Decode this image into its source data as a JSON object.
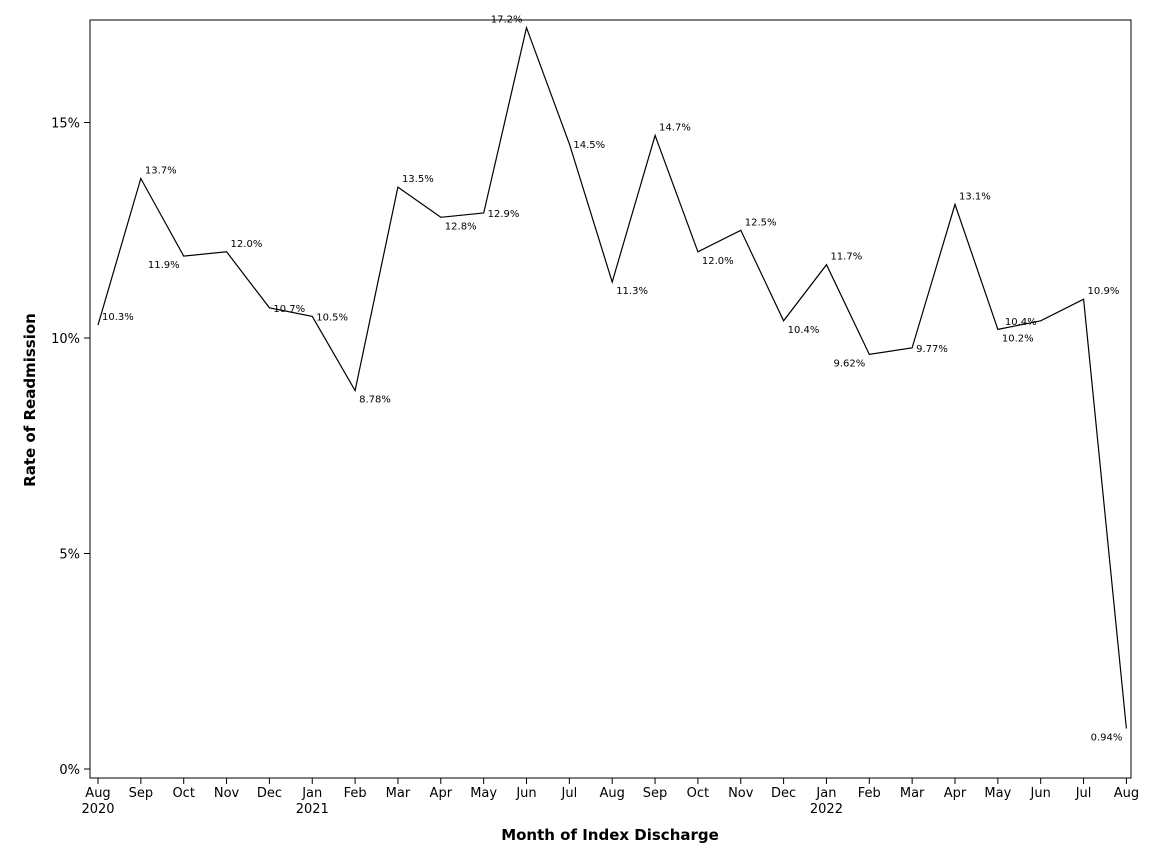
{
  "chart_data": {
    "type": "line",
    "xlabel": "Month of Index Discharge",
    "ylabel": "Rate of Readmission",
    "ylim": [
      0,
      17.4
    ],
    "yticks": [
      {
        "value": 0,
        "label": "0%"
      },
      {
        "value": 5,
        "label": "5%"
      },
      {
        "value": 10,
        "label": "10%"
      },
      {
        "value": 15,
        "label": "15%"
      }
    ],
    "grid": false,
    "x": [
      "Aug 2020",
      "Sep 2020",
      "Oct 2020",
      "Nov 2020",
      "Dec 2020",
      "Jan 2021",
      "Feb 2021",
      "Mar 2021",
      "Apr 2021",
      "May 2021",
      "Jun 2021",
      "Jul 2021",
      "Aug 2021",
      "Sep 2021",
      "Oct 2021",
      "Nov 2021",
      "Dec 2021",
      "Jan 2022",
      "Feb 2022",
      "Mar 2022",
      "Apr 2022",
      "May 2022",
      "Jun 2022",
      "Jul 2022",
      "Aug 2022"
    ],
    "tick_month": [
      "Aug",
      "Sep",
      "Oct",
      "Nov",
      "Dec",
      "Jan",
      "Feb",
      "Mar",
      "Apr",
      "May",
      "Jun",
      "Jul",
      "Aug",
      "Sep",
      "Oct",
      "Nov",
      "Dec",
      "Jan",
      "Feb",
      "Mar",
      "Apr",
      "May",
      "Jun",
      "Jul",
      "Aug"
    ],
    "tick_year": [
      "2020",
      "",
      "",
      "",
      "",
      "2021",
      "",
      "",
      "",
      "",
      "",
      "",
      "",
      "",
      "",
      "",
      "",
      "2022",
      "",
      "",
      "",
      "",
      "",
      "",
      ""
    ],
    "values": [
      10.3,
      13.7,
      11.9,
      12.0,
      10.7,
      10.5,
      8.78,
      13.5,
      12.8,
      12.9,
      17.2,
      14.5,
      11.3,
      14.7,
      12.0,
      12.5,
      10.4,
      11.7,
      9.62,
      9.77,
      13.1,
      10.2,
      10.4,
      10.9,
      0.94
    ],
    "data_labels": [
      "10.3%",
      "13.7%",
      "11.9%",
      "12.0%",
      "10.7%",
      "10.5%",
      "8.78%",
      "13.5%",
      "12.8%",
      "12.9%",
      "17.2%",
      "14.5%",
      "11.3%",
      "14.7%",
      "12.0%",
      "12.5%",
      "10.4%",
      "11.7%",
      "9.62%",
      "9.77%",
      "13.1%",
      "10.2%",
      "10.4%",
      "10.9%",
      "0.94%"
    ],
    "label_position": [
      "right",
      "right",
      "left",
      "right",
      "right",
      "right",
      "right",
      "right",
      "right",
      "right",
      "left",
      "right",
      "right",
      "right",
      "right",
      "right",
      "right",
      "right",
      "left",
      "right",
      "right",
      "right",
      "left",
      "right",
      "left"
    ]
  }
}
